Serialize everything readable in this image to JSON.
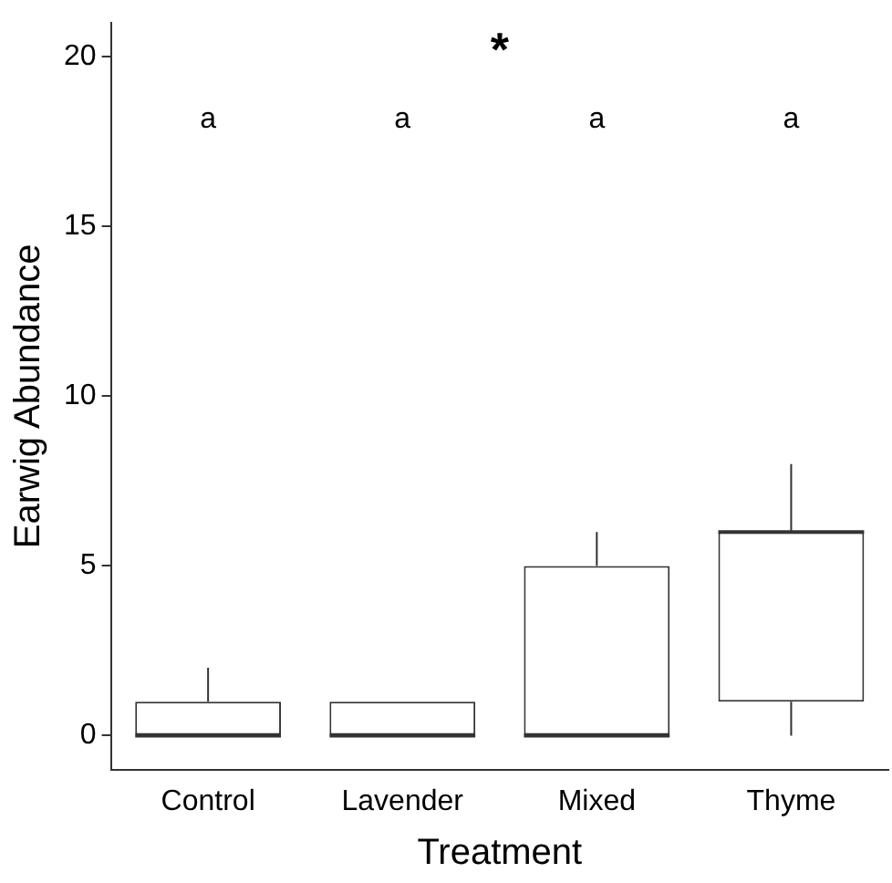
{
  "chart_data": {
    "type": "box",
    "xlabel": "Treatment",
    "ylabel": "Earwig Abundance",
    "categories": [
      "Control",
      "Lavender",
      "Mixed",
      "Thyme"
    ],
    "boxes": [
      {
        "low": 0,
        "q1": 0,
        "median": 0,
        "q3": 1,
        "high": 2
      },
      {
        "low": 0,
        "q1": 0,
        "median": 0,
        "q3": 1,
        "high": 1
      },
      {
        "low": 0,
        "q1": 0,
        "median": 0,
        "q3": 5,
        "high": 6
      },
      {
        "low": 0,
        "q1": 1,
        "median": 6,
        "q3": 6,
        "high": 8
      }
    ],
    "color": "#333333",
    "ylim": [
      -1,
      21
    ],
    "yticks": [
      0,
      5,
      10,
      15,
      20
    ],
    "grid": false,
    "legend": false,
    "annotations": [
      "a",
      "a",
      "a",
      "a",
      "*"
    ]
  }
}
